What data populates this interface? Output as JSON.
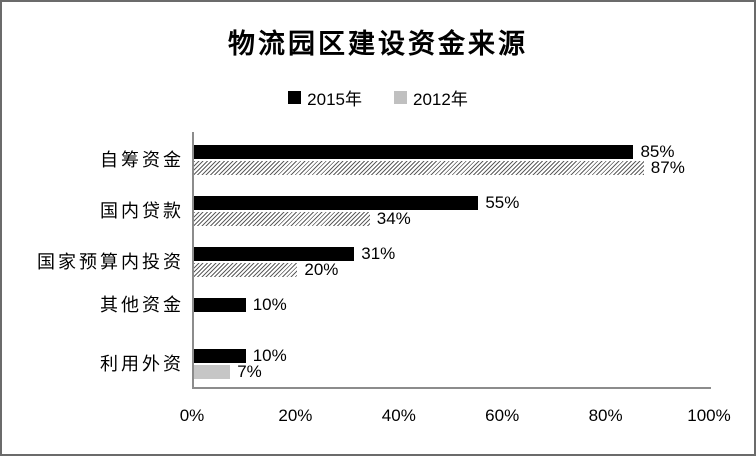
{
  "title": "物流园区建设资金来源",
  "legend": [
    {
      "label": "2015年",
      "color": "#000000"
    },
    {
      "label": "2012年",
      "color": "#c0c0c0"
    }
  ],
  "chart_data": {
    "type": "bar",
    "orientation": "horizontal",
    "title": "物流园区建设资金来源",
    "categories": [
      "自筹资金",
      "国内贷款",
      "国家预算内投资",
      "其他资金",
      "利用外资"
    ],
    "series": [
      {
        "name": "2015年",
        "color": "#000000",
        "fill": "solid-black",
        "values": [
          85,
          55,
          31,
          10,
          10
        ],
        "labels": [
          "85%",
          "55%",
          "31%",
          "10%",
          "10%"
        ]
      },
      {
        "name": "2012年",
        "color": "#c0c0c0",
        "fill": "diagonal-hatch",
        "fill_styles": [
          "hatch",
          "hatch",
          "hatch",
          null,
          "solid-gray"
        ],
        "values": [
          87,
          34,
          20,
          null,
          7
        ],
        "labels": [
          "87%",
          "34%",
          "20%",
          null,
          "7%"
        ]
      }
    ],
    "xlim": [
      0,
      100
    ],
    "x_ticks": [
      "0%",
      "20%",
      "40%",
      "60%",
      "80%",
      "100%"
    ],
    "grid": false,
    "legend_position": "top",
    "value_labels": "outside-end"
  },
  "colors": {
    "frame_border": "#6b6b6b",
    "axis_line": "#8c8c8c",
    "hatch_line": "#5f5f5f",
    "gray_bar": "#c6c6c6"
  }
}
